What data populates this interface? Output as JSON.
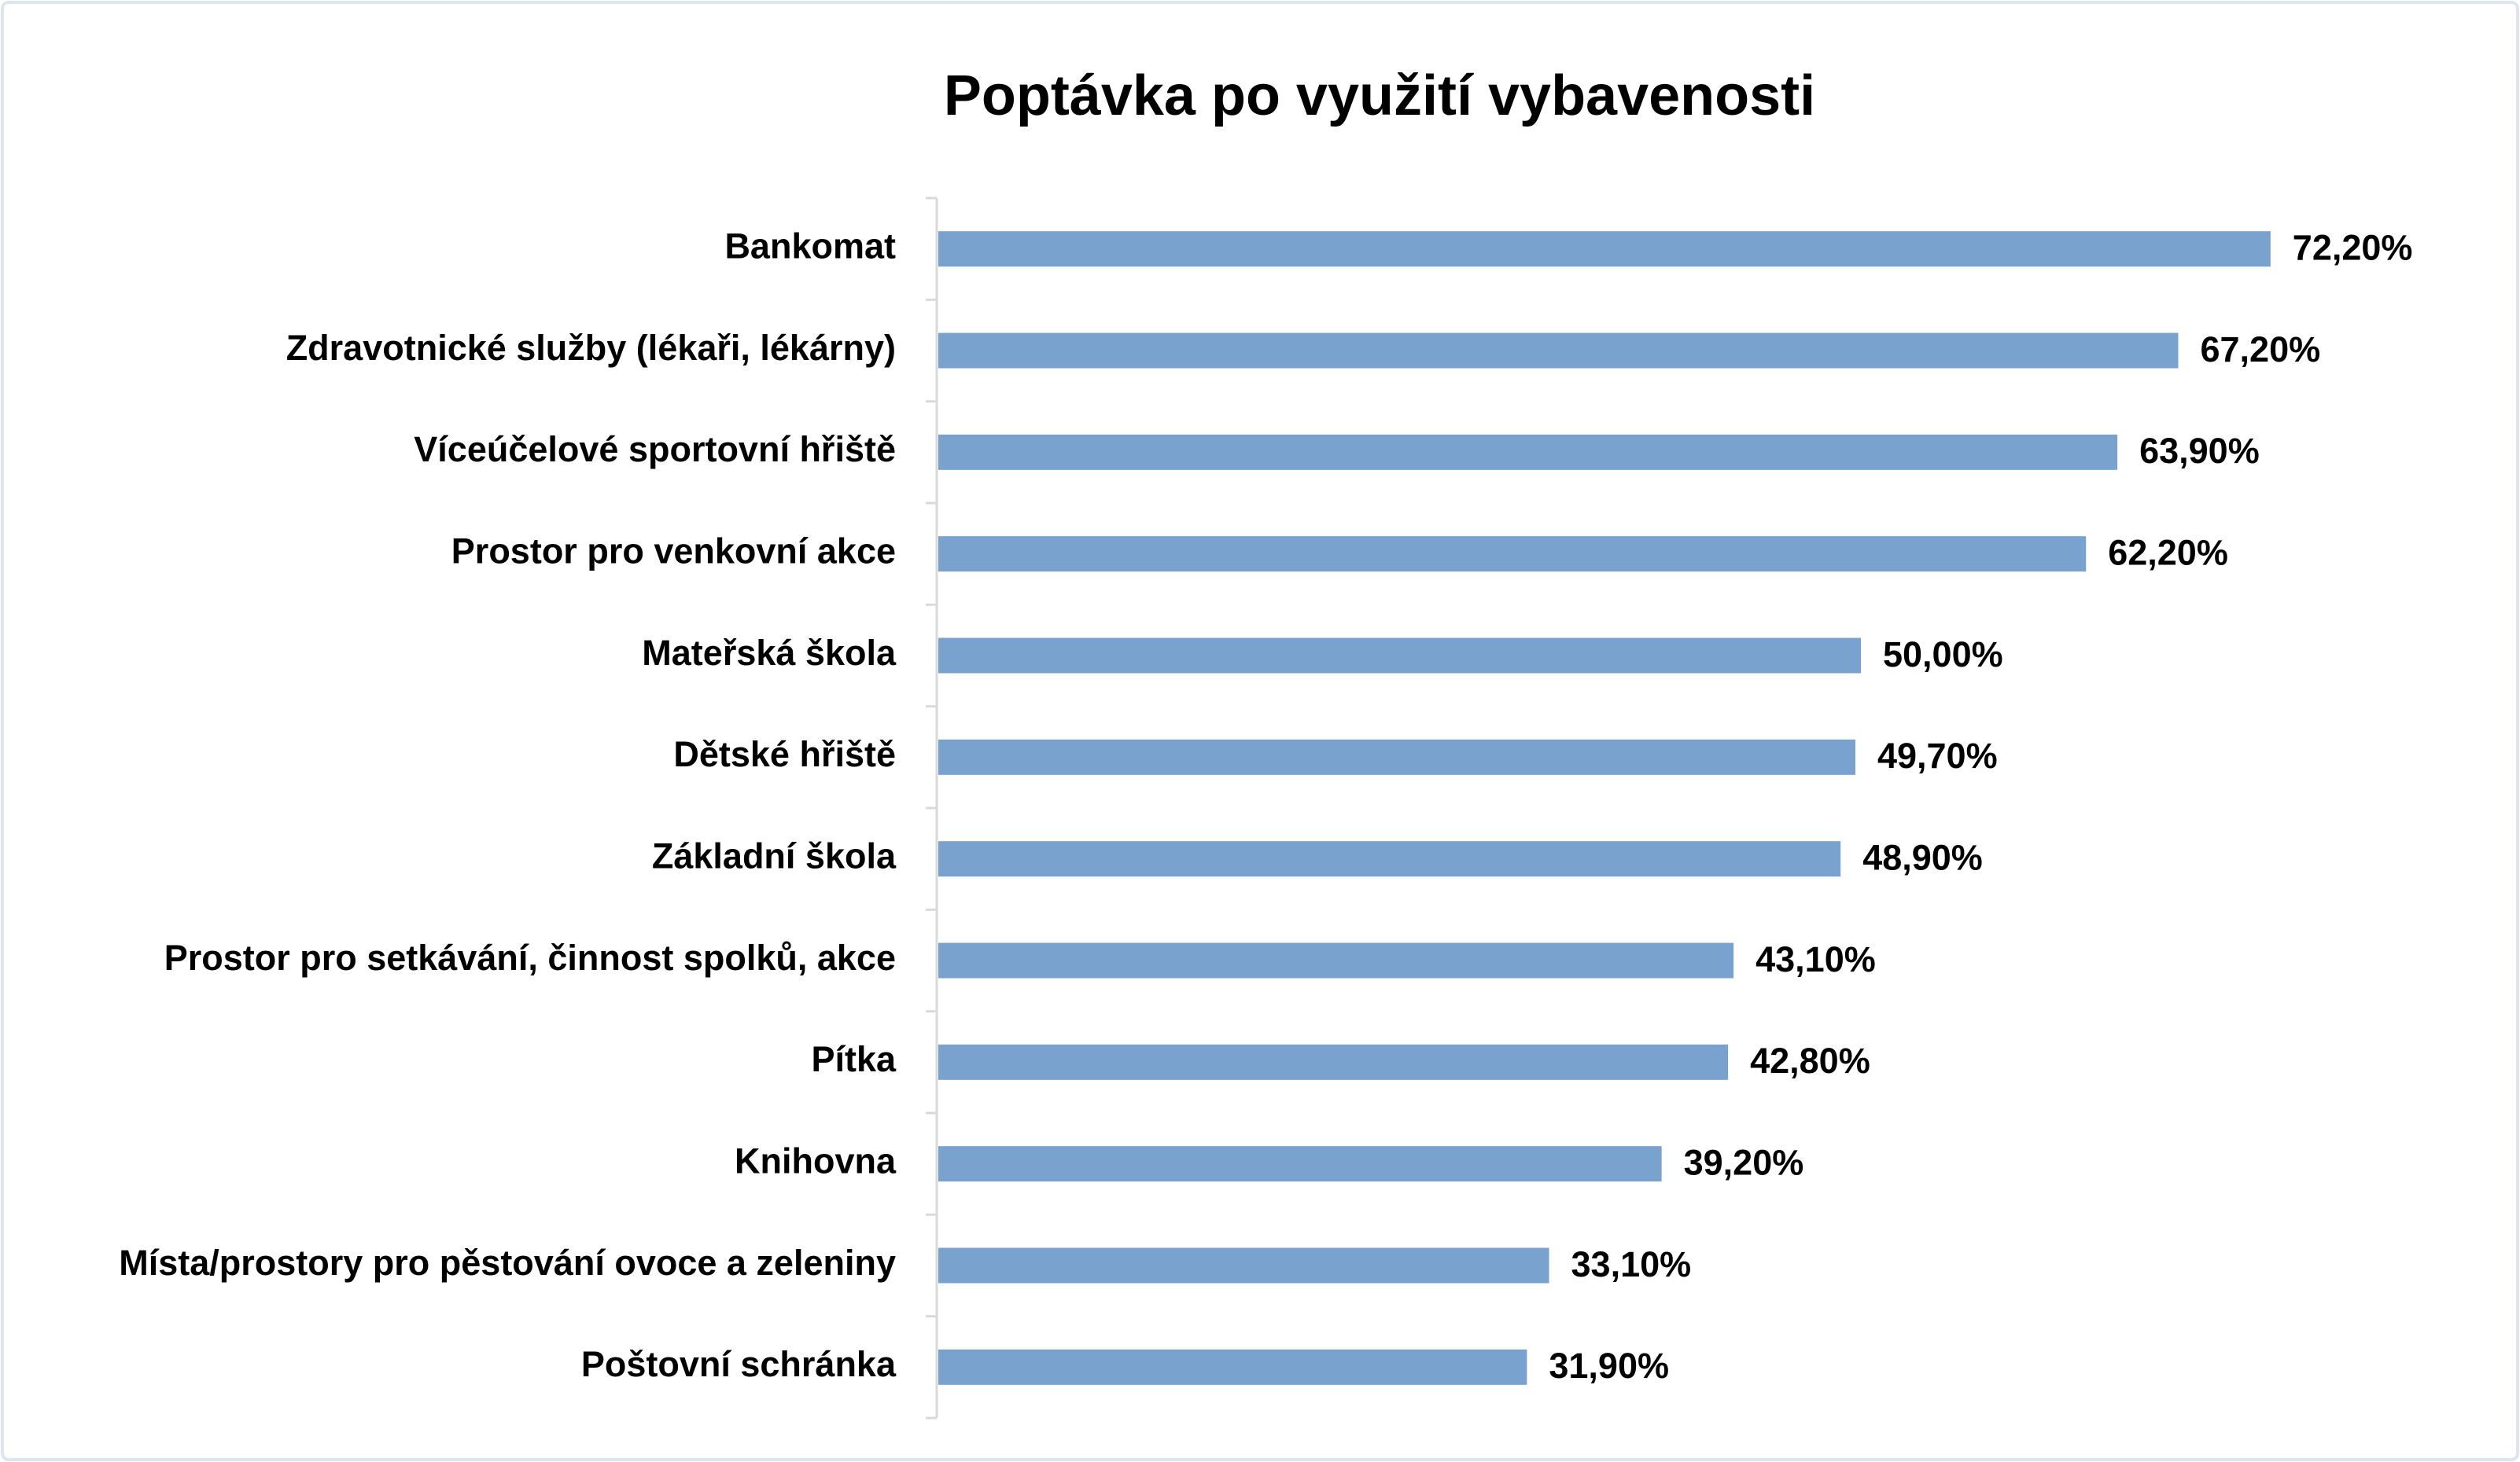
{
  "chart_data": {
    "type": "bar",
    "orientation": "horizontal",
    "title": "Poptávka po využití vybavenosti",
    "categories": [
      "Bankomat",
      "Zdravotnické služby (lékaři, lékárny)",
      "Víceúčelové sportovní hřiště",
      "Prostor pro venkovní akce",
      "Mateřská škola",
      "Dětské hřiště",
      "Základní škola",
      "Prostor pro setkávání, činnost spolků, akce",
      "Pítka",
      "Knihovna",
      "Místa/prostory pro pěstování ovoce a zeleniny",
      "Poštovní schránka"
    ],
    "values": [
      72.2,
      67.2,
      63.9,
      62.2,
      50.0,
      49.7,
      48.9,
      43.1,
      42.8,
      39.2,
      33.1,
      31.9
    ],
    "value_labels": [
      "72,20%",
      "67,20%",
      "63,90%",
      "62,20%",
      "50,00%",
      "49,70%",
      "48,90%",
      "43,10%",
      "42,80%",
      "39,20%",
      "33,10%",
      "31,90%"
    ],
    "color": "#7aa2cf"
  }
}
